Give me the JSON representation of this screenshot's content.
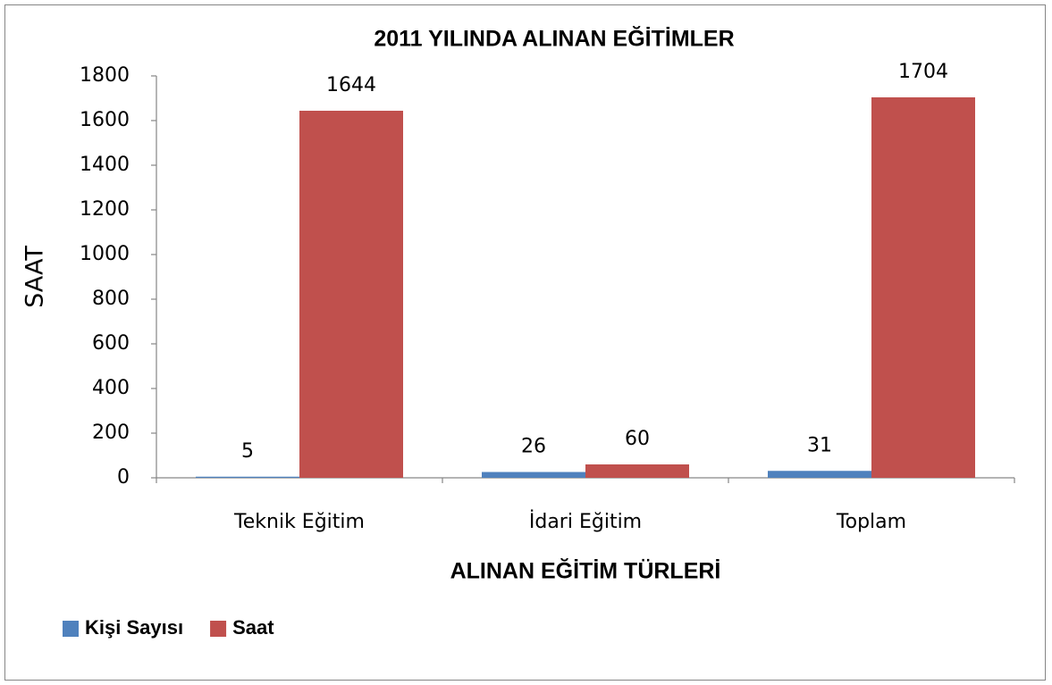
{
  "chart_data": {
    "type": "bar",
    "title": "2011 YILINDA ALINAN EĞİTİMLER",
    "x_label": "ALINAN EĞİTİM TÜRLERİ",
    "y_label": "SAAT",
    "categories": [
      "Teknik Eğitim",
      "İdari Eğitim",
      "Toplam"
    ],
    "series": [
      {
        "name": "Kişi Sayısı",
        "color": "#4f81bd",
        "values": [
          5,
          26,
          31
        ]
      },
      {
        "name": "Saat",
        "color": "#c0504d",
        "values": [
          1644,
          60,
          1704
        ]
      }
    ],
    "ylim": [
      0,
      1800
    ],
    "yticks": [
      0,
      200,
      400,
      600,
      800,
      1000,
      1200,
      1400,
      1600,
      1800
    ],
    "grid": false,
    "legend": "bottom-left",
    "data_labels": true
  }
}
